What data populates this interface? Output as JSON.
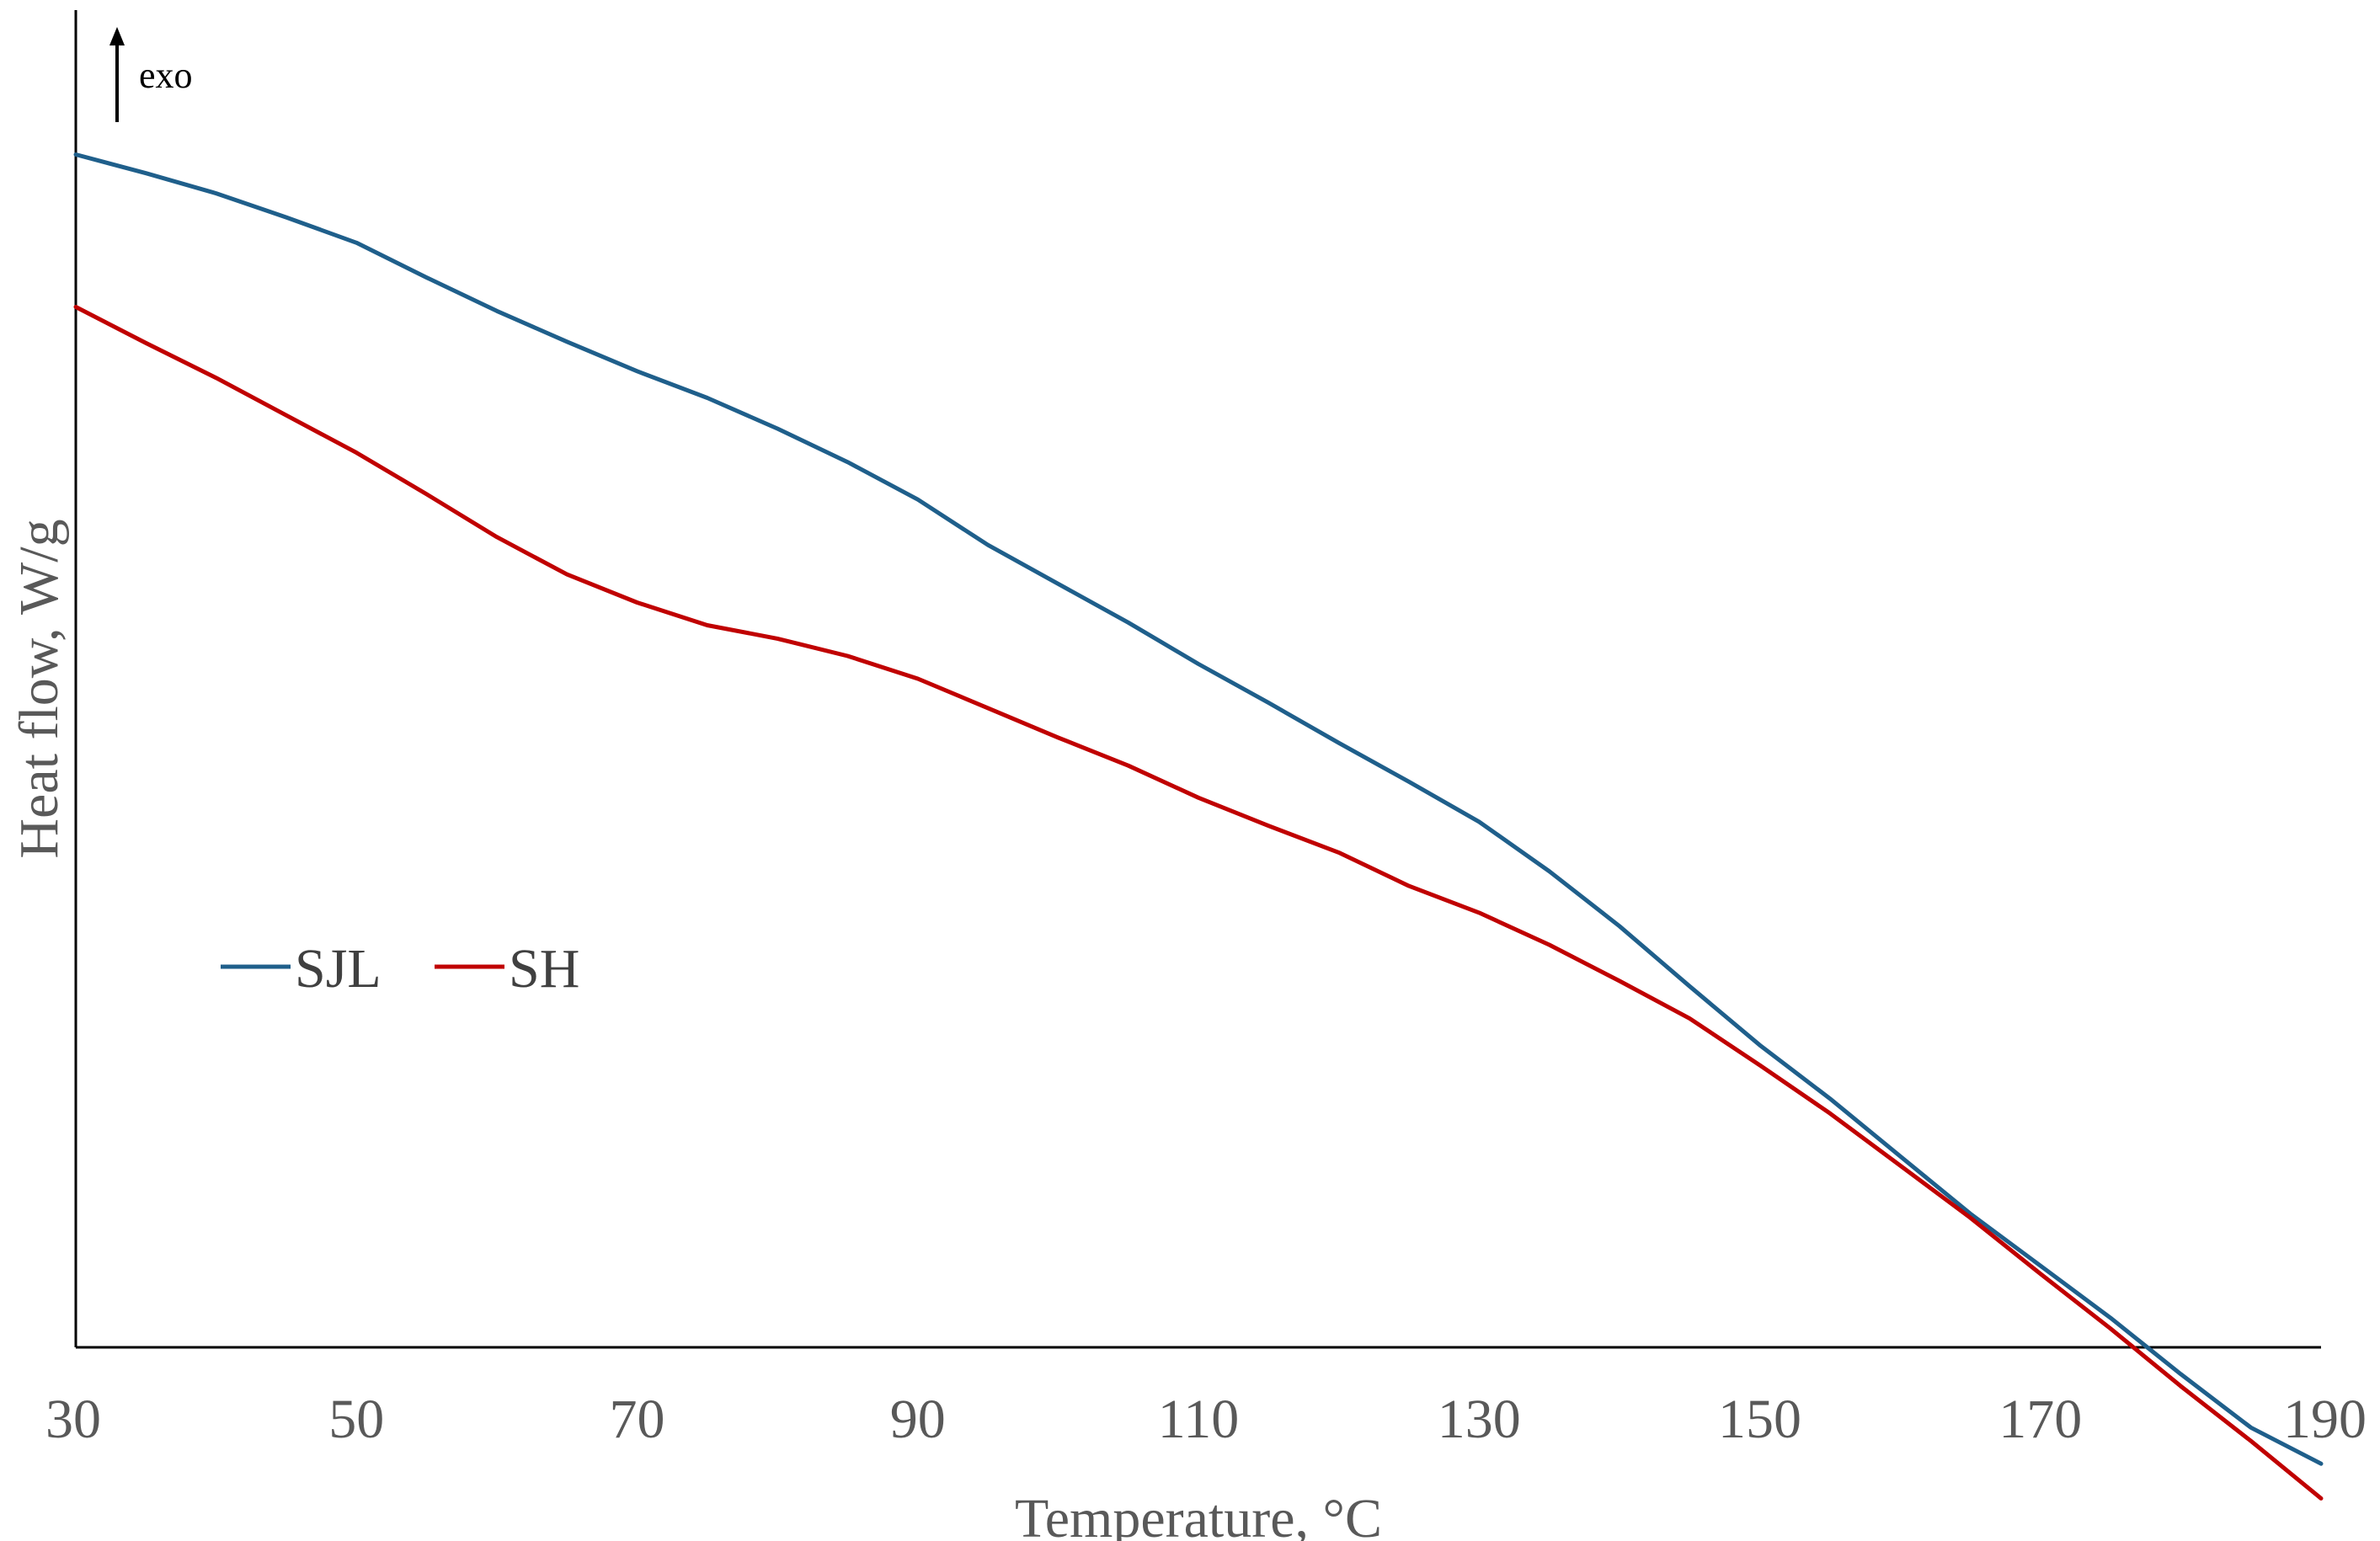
{
  "chart_data": {
    "type": "line",
    "xlabel": "Temperature, °C",
    "ylabel": "Heat flow, W/g",
    "xlim": [
      30,
      190
    ],
    "x_ticks": [
      30,
      50,
      70,
      90,
      110,
      130,
      150,
      170,
      190
    ],
    "y_ticks_shown": false,
    "grid": false,
    "legend_placement": "middle-left",
    "annotation": {
      "text": "exo",
      "arrow": "up"
    },
    "series": [
      {
        "name": "SJL",
        "color": "#1F5F8B",
        "x": [
          30,
          35,
          40,
          45,
          50,
          55,
          60,
          65,
          70,
          75,
          80,
          85,
          90,
          95,
          100,
          105,
          110,
          115,
          120,
          125,
          130,
          135,
          140,
          145,
          150,
          155,
          160,
          165,
          170,
          175,
          180,
          185,
          190
        ],
        "y": [
          0.892,
          0.878,
          0.863,
          0.845,
          0.826,
          0.8,
          0.775,
          0.752,
          0.73,
          0.71,
          0.687,
          0.662,
          0.634,
          0.6,
          0.571,
          0.542,
          0.511,
          0.482,
          0.452,
          0.423,
          0.393,
          0.356,
          0.315,
          0.27,
          0.226,
          0.186,
          0.143,
          0.1,
          0.061,
          0.022,
          -0.02,
          -0.06,
          -0.087
        ]
      },
      {
        "name": "SH",
        "color": "#C00000",
        "x": [
          30,
          35,
          40,
          45,
          50,
          55,
          60,
          65,
          70,
          75,
          80,
          85,
          90,
          95,
          100,
          105,
          110,
          115,
          120,
          125,
          130,
          135,
          140,
          145,
          150,
          155,
          160,
          165,
          170,
          175,
          180,
          185,
          190
        ],
        "y": [
          0.778,
          0.751,
          0.725,
          0.697,
          0.669,
          0.638,
          0.606,
          0.578,
          0.557,
          0.54,
          0.53,
          0.517,
          0.5,
          0.478,
          0.456,
          0.435,
          0.411,
          0.39,
          0.37,
          0.345,
          0.325,
          0.301,
          0.274,
          0.246,
          0.211,
          0.175,
          0.136,
          0.097,
          0.055,
          0.014,
          -0.029,
          -0.07,
          -0.113
        ]
      }
    ]
  }
}
